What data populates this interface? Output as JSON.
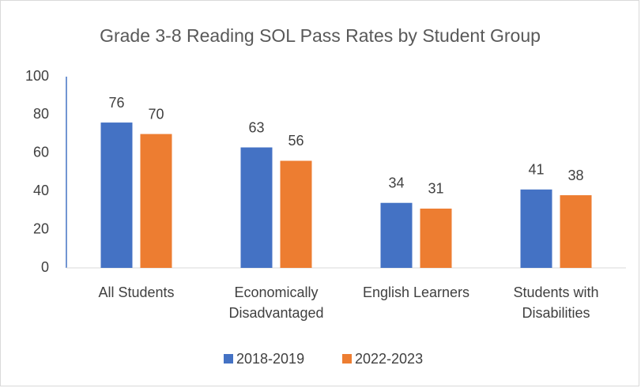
{
  "chart_data": {
    "type": "bar",
    "title": "Grade 3-8 Reading SOL Pass Rates by Student Group",
    "categories": [
      "All Students",
      "Economically Disadvantaged",
      "English Learners",
      "Students with Disabilities"
    ],
    "series": [
      {
        "name": "2018-2019",
        "color": "#4472c4",
        "values": [
          76,
          63,
          34,
          41
        ]
      },
      {
        "name": "2022-2023",
        "color": "#ed7d31",
        "values": [
          70,
          56,
          31,
          38
        ]
      }
    ],
    "ylim": [
      0,
      100
    ],
    "yticks": [
      0,
      20,
      40,
      60,
      80,
      100
    ],
    "grid": false,
    "legend": "bottom"
  }
}
